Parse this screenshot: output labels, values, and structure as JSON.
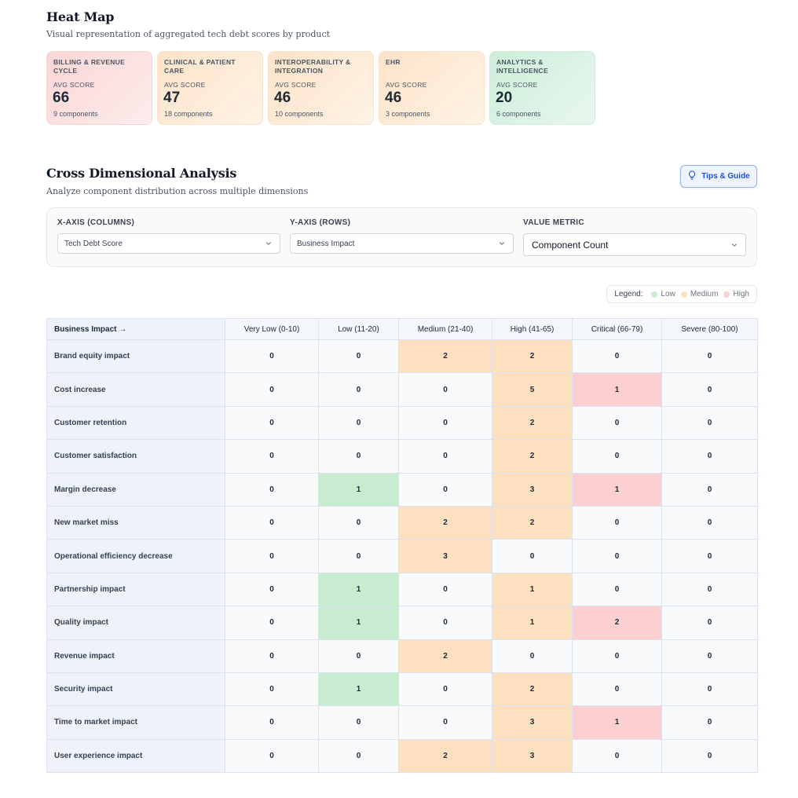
{
  "heatmap": {
    "title": "Heat Map",
    "subtitle": "Visual representation of aggregated tech debt scores by product",
    "avg_label": "AVG SCORE",
    "products": [
      {
        "name": "BILLING & REVENUE CYCLE",
        "score": "66",
        "components": "9 components",
        "level": "high"
      },
      {
        "name": "CLINICAL & PATIENT CARE",
        "score": "47",
        "components": "18 components",
        "level": "med"
      },
      {
        "name": "INTEROPERABILITY & INTEGRATION",
        "score": "46",
        "components": "10 components",
        "level": "med"
      },
      {
        "name": "EHR",
        "score": "46",
        "components": "3 components",
        "level": "med"
      },
      {
        "name": "ANALYTICS & INTELLIGENCE",
        "score": "20",
        "components": "6 components",
        "level": "low"
      }
    ]
  },
  "analysis": {
    "title": "Cross Dimensional Analysis",
    "subtitle": "Analyze component distribution across multiple dimensions",
    "tips_label": "Tips & Guide",
    "controls": {
      "x_axis": {
        "label": "X-AXIS (COLUMNS)",
        "value": "Tech Debt Score"
      },
      "y_axis": {
        "label": "Y-AXIS (ROWS)",
        "value": "Business Impact"
      },
      "metric": {
        "label": "VALUE METRIC",
        "value": "Component Count"
      }
    },
    "legend": {
      "title": "Legend:",
      "items": [
        {
          "label": "Low",
          "color": "#c7eccf"
        },
        {
          "label": "Medium",
          "color": "#fde0c0"
        },
        {
          "label": "High",
          "color": "#fcd0d0"
        }
      ]
    },
    "table": {
      "corner": "Business Impact →",
      "columns": [
        "Very Low (0-10)",
        "Low (11-20)",
        "Medium (21-40)",
        "High (41-65)",
        "Critical (66-79)",
        "Severe (80-100)"
      ],
      "rows": [
        {
          "label": "Brand equity impact",
          "values": [
            "0",
            "0",
            "2",
            "2",
            "0",
            "0"
          ]
        },
        {
          "label": "Cost increase",
          "values": [
            "0",
            "0",
            "0",
            "5",
            "1",
            "0"
          ]
        },
        {
          "label": "Customer retention",
          "values": [
            "0",
            "0",
            "0",
            "2",
            "0",
            "0"
          ]
        },
        {
          "label": "Customer satisfaction",
          "values": [
            "0",
            "0",
            "0",
            "2",
            "0",
            "0"
          ]
        },
        {
          "label": "Margin decrease",
          "values": [
            "0",
            "1",
            "0",
            "3",
            "1",
            "0"
          ]
        },
        {
          "label": "New market miss",
          "values": [
            "0",
            "0",
            "2",
            "2",
            "0",
            "0"
          ]
        },
        {
          "label": "Operational efficiency decrease",
          "values": [
            "0",
            "0",
            "3",
            "0",
            "0",
            "0"
          ]
        },
        {
          "label": "Partnership impact",
          "values": [
            "0",
            "1",
            "0",
            "1",
            "0",
            "0"
          ]
        },
        {
          "label": "Quality impact",
          "values": [
            "0",
            "1",
            "0",
            "1",
            "2",
            "0"
          ]
        },
        {
          "label": "Revenue impact",
          "values": [
            "0",
            "0",
            "2",
            "0",
            "0",
            "0"
          ]
        },
        {
          "label": "Security impact",
          "values": [
            "0",
            "1",
            "0",
            "2",
            "0",
            "0"
          ]
        },
        {
          "label": "Time to market impact",
          "values": [
            "0",
            "0",
            "0",
            "3",
            "1",
            "0"
          ]
        },
        {
          "label": "User experience impact",
          "values": [
            "0",
            "0",
            "2",
            "3",
            "0",
            "0"
          ]
        }
      ]
    }
  }
}
